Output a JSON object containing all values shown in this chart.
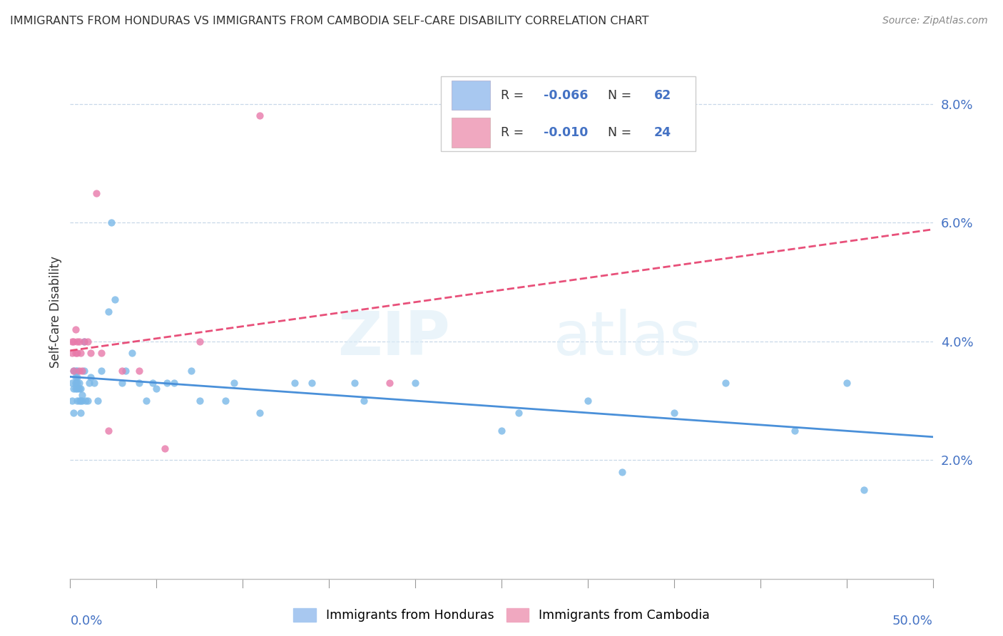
{
  "title": "IMMIGRANTS FROM HONDURAS VS IMMIGRANTS FROM CAMBODIA SELF-CARE DISABILITY CORRELATION CHART",
  "source": "Source: ZipAtlas.com",
  "ylabel": "Self-Care Disability",
  "right_ytick_vals": [
    0.02,
    0.04,
    0.06,
    0.08
  ],
  "right_ytick_labels": [
    "2.0%",
    "4.0%",
    "6.0%",
    "8.0%"
  ],
  "legend_color_honduras": "#a8c8f0",
  "legend_color_cambodia": "#f0a8c0",
  "color_honduras": "#7ab8e8",
  "color_cambodia": "#e87aaa",
  "trendline_honduras": "#4a90d9",
  "trendline_cambodia": "#e8507a",
  "honduras_x": [
    0.001,
    0.001,
    0.002,
    0.002,
    0.002,
    0.003,
    0.003,
    0.003,
    0.003,
    0.004,
    0.004,
    0.004,
    0.004,
    0.004,
    0.005,
    0.005,
    0.005,
    0.006,
    0.006,
    0.006,
    0.007,
    0.007,
    0.008,
    0.008,
    0.009,
    0.01,
    0.011,
    0.012,
    0.014,
    0.016,
    0.018,
    0.022,
    0.024,
    0.026,
    0.03,
    0.032,
    0.036,
    0.04,
    0.044,
    0.05,
    0.06,
    0.07,
    0.09,
    0.11,
    0.14,
    0.17,
    0.2,
    0.25,
    0.3,
    0.35,
    0.38,
    0.42,
    0.45,
    0.46,
    0.165,
    0.32,
    0.26,
    0.048,
    0.056,
    0.075,
    0.095,
    0.13
  ],
  "honduras_y": [
    0.033,
    0.03,
    0.035,
    0.028,
    0.032,
    0.033,
    0.035,
    0.034,
    0.032,
    0.03,
    0.032,
    0.034,
    0.035,
    0.033,
    0.03,
    0.032,
    0.033,
    0.028,
    0.03,
    0.032,
    0.03,
    0.031,
    0.04,
    0.035,
    0.03,
    0.03,
    0.033,
    0.034,
    0.033,
    0.03,
    0.035,
    0.045,
    0.06,
    0.047,
    0.033,
    0.035,
    0.038,
    0.033,
    0.03,
    0.032,
    0.033,
    0.035,
    0.03,
    0.028,
    0.033,
    0.03,
    0.033,
    0.025,
    0.03,
    0.028,
    0.033,
    0.025,
    0.033,
    0.015,
    0.033,
    0.018,
    0.028,
    0.033,
    0.033,
    0.03,
    0.033,
    0.033
  ],
  "cambodia_x": [
    0.001,
    0.001,
    0.002,
    0.002,
    0.003,
    0.003,
    0.004,
    0.004,
    0.005,
    0.005,
    0.006,
    0.007,
    0.008,
    0.01,
    0.012,
    0.015,
    0.018,
    0.022,
    0.03,
    0.04,
    0.055,
    0.075,
    0.11,
    0.185
  ],
  "cambodia_y": [
    0.038,
    0.04,
    0.035,
    0.04,
    0.038,
    0.042,
    0.04,
    0.038,
    0.035,
    0.04,
    0.038,
    0.035,
    0.04,
    0.04,
    0.038,
    0.065,
    0.038,
    0.025,
    0.035,
    0.035,
    0.022,
    0.04,
    0.078,
    0.033
  ],
  "xlim": [
    0.0,
    0.5
  ],
  "ylim": [
    0.0,
    0.09
  ],
  "background_color": "#ffffff",
  "grid_color": "#c8d8e8",
  "tick_color": "#4472c4",
  "label_color": "#333333",
  "source_color": "#888888"
}
